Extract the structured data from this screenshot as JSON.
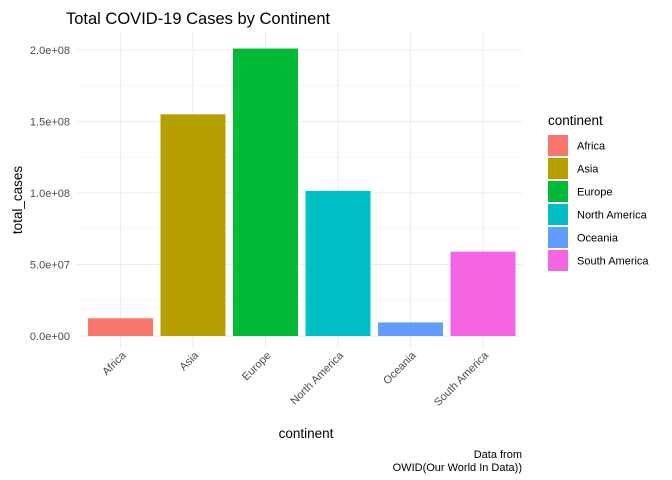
{
  "chart_data": {
    "type": "bar",
    "title": "Total COVID-19 Cases by Continent",
    "xlabel": "continent",
    "ylabel": "total_cases",
    "categories": [
      "Africa",
      "Asia",
      "Europe",
      "North America",
      "Oceania",
      "South America"
    ],
    "values": [
      12400000,
      155000000,
      201000000,
      101500000,
      9500000,
      59000000
    ],
    "colors": [
      "#F8766D",
      "#B79F00",
      "#00BA38",
      "#00BFC4",
      "#619CFF",
      "#F564E3"
    ],
    "ylim": [
      0,
      210000000
    ],
    "y_ticks": [
      0,
      50000000,
      100000000,
      150000000,
      200000000
    ],
    "y_tick_labels": [
      "0.0e+00",
      "5.0e+07",
      "1.0e+08",
      "1.5e+08",
      "2.0e+08"
    ],
    "grid": true,
    "legend": {
      "title": "continent",
      "placement": "right",
      "entries": [
        "Africa",
        "Asia",
        "Europe",
        "North America",
        "Oceania",
        "South America"
      ]
    },
    "caption": [
      "Data from",
      "OWID(Our World In Data))"
    ]
  }
}
